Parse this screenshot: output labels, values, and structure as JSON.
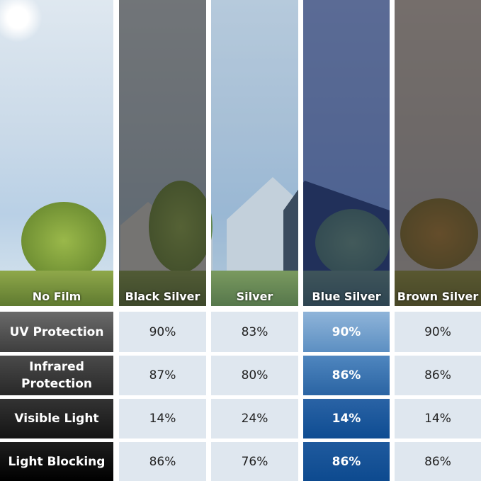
{
  "columns": [
    {
      "label": "No Film",
      "tint": "rgba(0,0,0,0)"
    },
    {
      "label": "Black Silver",
      "tint": "rgba(40,40,40,0.6)"
    },
    {
      "label": "Silver",
      "tint": "rgba(60,110,160,0.25)"
    },
    {
      "label": "Blue Silver",
      "tint": "rgba(20,40,100,0.65)"
    },
    {
      "label": "Brown Silver",
      "tint": "rgba(60,45,35,0.65)"
    }
  ],
  "rows": [
    {
      "label": "UV Protection",
      "values": [
        "90%",
        "83%",
        "90%",
        "90%"
      ]
    },
    {
      "label": "Infrared Protection",
      "values": [
        "87%",
        "80%",
        "86%",
        "86%"
      ]
    },
    {
      "label": "Visible Light",
      "values": [
        "14%",
        "24%",
        "14%",
        "14%"
      ]
    },
    {
      "label": "Light Blocking",
      "values": [
        "86%",
        "76%",
        "86%",
        "86%"
      ]
    }
  ],
  "colors": {
    "row_label_gradients": [
      [
        "#6a6a6a",
        "#3e3e3e"
      ],
      [
        "#4a4a4a",
        "#282828"
      ],
      [
        "#333",
        "#141414"
      ],
      [
        "#1e1e1e",
        "#000"
      ]
    ],
    "highlight_gradients": [
      [
        "#8fb4d9",
        "#5c8fc2"
      ],
      [
        "#4f86bf",
        "#2a64a3"
      ],
      [
        "#2a63a5",
        "#0e4c92"
      ],
      [
        "#1f5a9e",
        "#0d4a8f"
      ]
    ],
    "cell_bg": "#dfe7ef"
  }
}
